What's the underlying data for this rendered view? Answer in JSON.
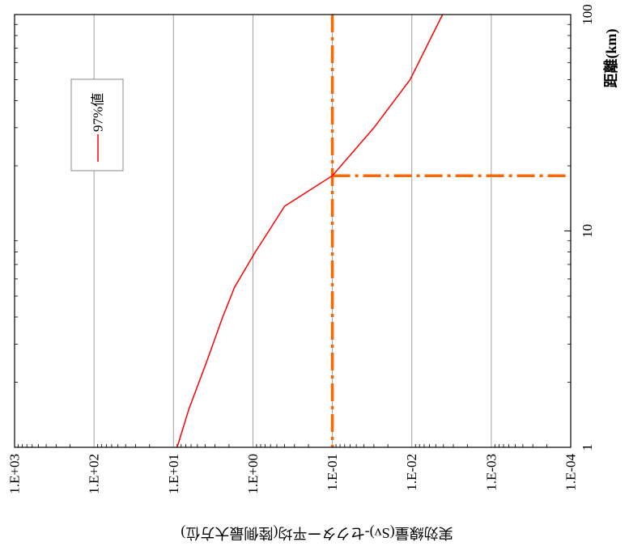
{
  "chart_data": {
    "type": "line",
    "orientation": "rotated-90-clockwise",
    "title": "",
    "xlabel": "距離(km)",
    "ylabel": "実効線量(Sv)-セクター平均(陸側最大方位)",
    "x_scale": "log",
    "y_scale": "log",
    "xlim": [
      1,
      100
    ],
    "ylim": [
      0.0001,
      1000
    ],
    "x_tick_labels": [
      "1",
      "10",
      "100"
    ],
    "y_tick_labels": [
      "1.E+03",
      "1.E+02",
      "1.E+01",
      "1.E+00",
      "1.E-01",
      "1.E-02",
      "1.E-03",
      "1.E-04"
    ],
    "grid": true,
    "legend": {
      "position": "top-left",
      "entries": [
        "97%値"
      ]
    },
    "series": [
      {
        "name": "97%値",
        "color": "#ff0000",
        "x": [
          1,
          1.5,
          2.5,
          4,
          5.5,
          8,
          10,
          13,
          18,
          30,
          50,
          100
        ],
        "y": [
          9.0,
          6.4,
          3.8,
          2.4,
          1.7,
          0.93,
          0.63,
          0.4,
          0.1,
          0.03,
          0.0105,
          0.0041
        ]
      }
    ],
    "reference_lines": [
      {
        "kind": "y-constant",
        "value": 0.1,
        "color": "#ff6600",
        "style": "dash-dot"
      },
      {
        "kind": "x-constant",
        "value": 18,
        "from_y": 0.1,
        "to_y": 0.0001,
        "color": "#ff6600",
        "style": "dash-dot"
      }
    ]
  }
}
